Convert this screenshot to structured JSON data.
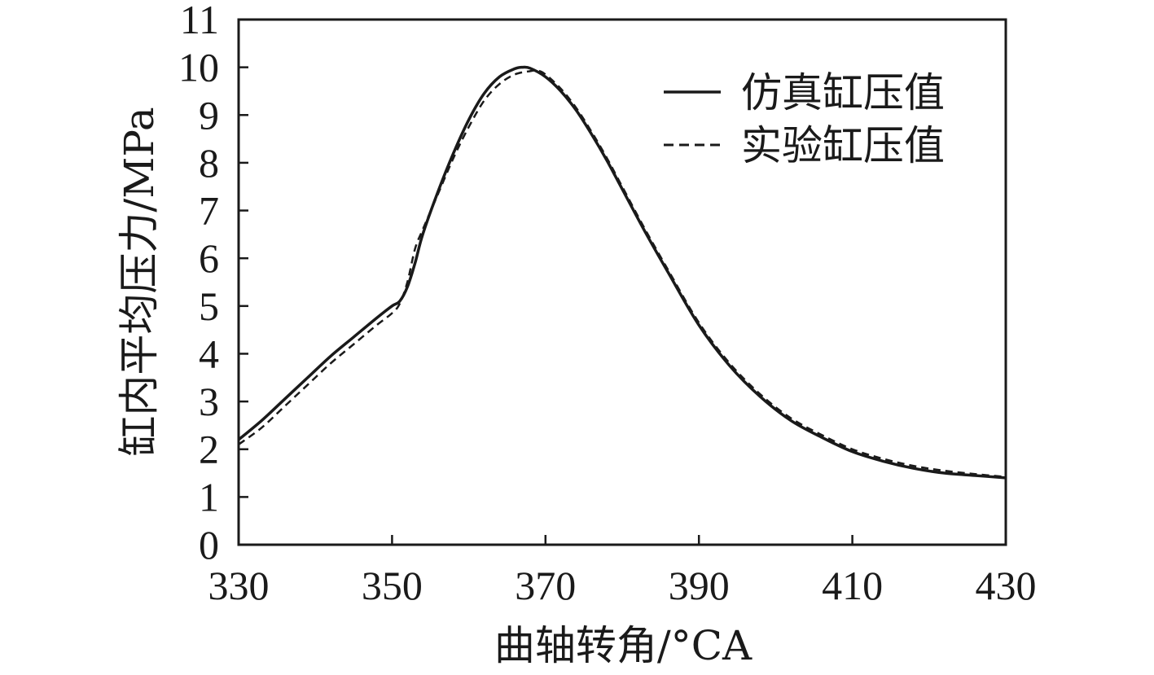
{
  "chart_data": {
    "type": "line",
    "xlabel": "曲轴转角/°CA",
    "ylabel": "缸内平均压力/MPa",
    "xlim": [
      330,
      430
    ],
    "ylim": [
      0,
      11
    ],
    "x_ticks": [
      "330",
      "350",
      "370",
      "390",
      "410",
      "430"
    ],
    "y_ticks": [
      "0",
      "1",
      "2",
      "3",
      "4",
      "5",
      "6",
      "7",
      "8",
      "9",
      "10",
      "11"
    ],
    "grid": false,
    "legend_position": "top-right",
    "series": [
      {
        "name": "仿真缸压值",
        "style": "solid",
        "color": "#1a1a1a",
        "x": [
          330,
          333,
          336,
          339,
          342,
          345,
          348,
          350,
          351,
          352,
          353,
          354,
          356,
          358,
          360,
          362,
          364,
          366,
          367,
          368,
          370,
          372,
          374,
          376,
          378,
          380,
          383,
          386,
          390,
          394,
          398,
          402,
          406,
          410,
          414,
          418,
          422,
          426,
          430
        ],
        "y": [
          2.2,
          2.6,
          3.05,
          3.5,
          3.95,
          4.35,
          4.75,
          5.0,
          5.1,
          5.4,
          5.9,
          6.5,
          7.4,
          8.2,
          8.9,
          9.45,
          9.8,
          9.97,
          10.0,
          9.98,
          9.8,
          9.5,
          9.1,
          8.6,
          8.05,
          7.45,
          6.55,
          5.7,
          4.6,
          3.75,
          3.1,
          2.6,
          2.25,
          1.95,
          1.75,
          1.6,
          1.5,
          1.45,
          1.4
        ]
      },
      {
        "name": "实验缸压值",
        "style": "dashed",
        "color": "#1a1a1a",
        "x": [
          330,
          333,
          336,
          339,
          342,
          345,
          348,
          350,
          351,
          352,
          353,
          354,
          356,
          358,
          360,
          362,
          364,
          366,
          368,
          369,
          370,
          372,
          374,
          376,
          378,
          380,
          383,
          386,
          390,
          394,
          398,
          402,
          406,
          410,
          414,
          418,
          422,
          426,
          430
        ],
        "y": [
          2.1,
          2.45,
          2.9,
          3.35,
          3.8,
          4.2,
          4.6,
          4.85,
          5.05,
          5.5,
          6.2,
          6.6,
          7.35,
          8.1,
          8.75,
          9.3,
          9.65,
          9.85,
          9.92,
          9.93,
          9.85,
          9.55,
          9.15,
          8.65,
          8.1,
          7.5,
          6.6,
          5.75,
          4.65,
          3.8,
          3.15,
          2.65,
          2.3,
          2.0,
          1.8,
          1.65,
          1.55,
          1.48,
          1.42
        ]
      }
    ]
  }
}
